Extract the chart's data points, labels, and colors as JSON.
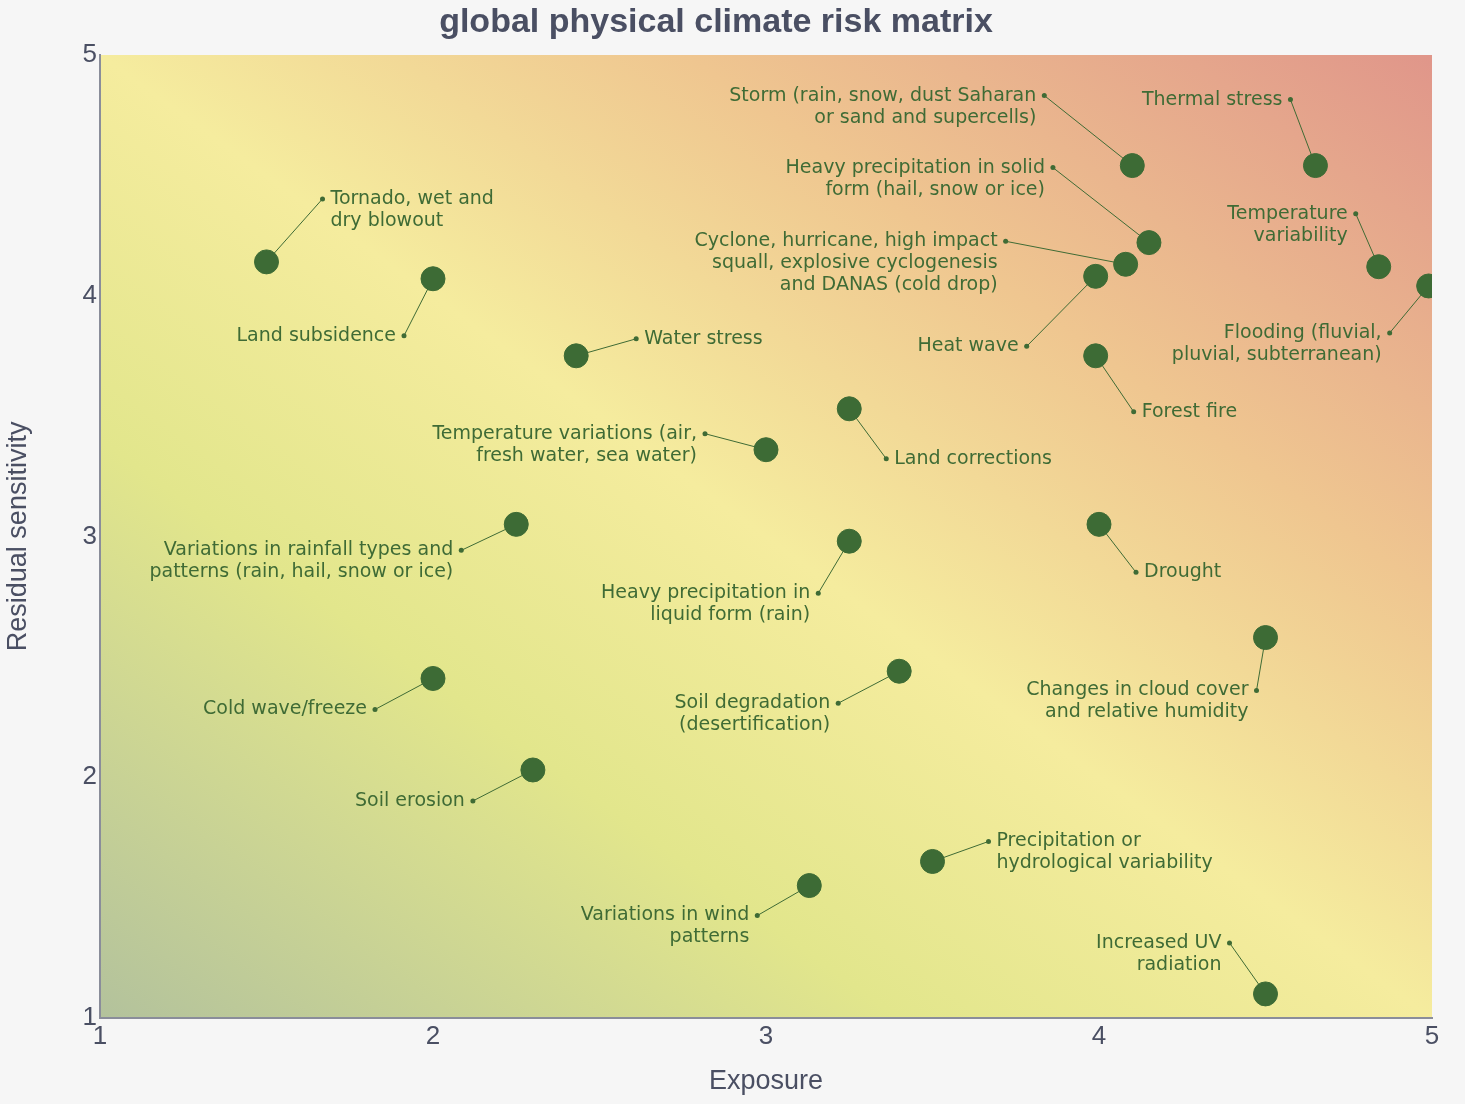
{
  "chart_data": {
    "type": "scatter",
    "title": "global physical climate risk matrix",
    "xlabel": "Exposure",
    "ylabel": "Residual sensitivity",
    "marker": "circle",
    "xlim": [
      1,
      5
    ],
    "xticks": [
      1,
      2,
      3,
      4,
      5
    ],
    "ylim": [
      1,
      5
    ],
    "yticks": [
      1,
      2,
      3,
      4,
      5
    ],
    "series": [
      {
        "color": "#3d6b35",
        "x": [
          4.1,
          4.65,
          4.15,
          4.84,
          4.08,
          3.99,
          4.99,
          3.99,
          1.5,
          2.0,
          2.43,
          3.0,
          3.25,
          2.25,
          3.25,
          4.0,
          4.5,
          2.0,
          3.4,
          2.3,
          3.5,
          3.13,
          4.5
        ],
        "values": [
          4.54,
          4.54,
          4.22,
          4.12,
          4.13,
          4.08,
          4.04,
          3.75,
          4.14,
          4.07,
          3.75,
          3.36,
          3.53,
          3.05,
          2.98,
          3.05,
          2.58,
          2.41,
          2.44,
          2.03,
          1.65,
          1.55,
          1.1
        ]
      }
    ],
    "annotations": [
      {
        "text": "Storm (rain, snow, dust Saharan or sand and supercells)",
        "x": 4.1,
        "y": 4.54
      },
      {
        "text": "Thermal stress",
        "x": 4.65,
        "y": 4.54
      },
      {
        "text": "Heavy precipitation in solid form (hail, snow or ice)",
        "x": 4.15,
        "y": 4.22
      },
      {
        "text": "Temperature variability",
        "x": 4.84,
        "y": 4.12
      },
      {
        "text": "Cyclone, hurricane, high impact squall, explosive cyclogenesis and DANAS (cold drop)",
        "x": 4.08,
        "y": 4.13
      },
      {
        "text": "Heat wave",
        "x": 3.99,
        "y": 4.08
      },
      {
        "text": "Flooding (fluvial, pluvial, subterranean)",
        "x": 4.99,
        "y": 4.04
      },
      {
        "text": "Forest fire",
        "x": 3.99,
        "y": 3.75
      },
      {
        "text": "Tornado, wet and dry blowout",
        "x": 1.5,
        "y": 4.14
      },
      {
        "text": "Land subsidence",
        "x": 2.0,
        "y": 4.07
      },
      {
        "text": "Water stress",
        "x": 2.43,
        "y": 3.75
      },
      {
        "text": "Temperature variations (air, fresh water, sea water)",
        "x": 3.0,
        "y": 3.36
      },
      {
        "text": "Land corrections",
        "x": 3.25,
        "y": 3.53
      },
      {
        "text": "Variations in rainfall types and patterns (rain, hail, snow or ice)",
        "x": 2.25,
        "y": 3.05
      },
      {
        "text": "Heavy precipitation in liquid form (rain)",
        "x": 3.25,
        "y": 2.98
      },
      {
        "text": "Drought",
        "x": 4.0,
        "y": 3.05
      },
      {
        "text": "Changes in cloud cover and relative humidity",
        "x": 4.5,
        "y": 2.58
      },
      {
        "text": "Cold wave/freeze",
        "x": 2.0,
        "y": 2.41
      },
      {
        "text": "Soil degradation (desertification)",
        "x": 3.4,
        "y": 2.44
      },
      {
        "text": "Soil erosion",
        "x": 2.3,
        "y": 2.03
      },
      {
        "text": "Precipitation or hydrological variability",
        "x": 3.5,
        "y": 1.65
      },
      {
        "text": "Variations in wind patterns",
        "x": 3.13,
        "y": 1.55
      },
      {
        "text": "Increased UV radiation",
        "x": 4.5,
        "y": 1.1
      }
    ]
  }
}
